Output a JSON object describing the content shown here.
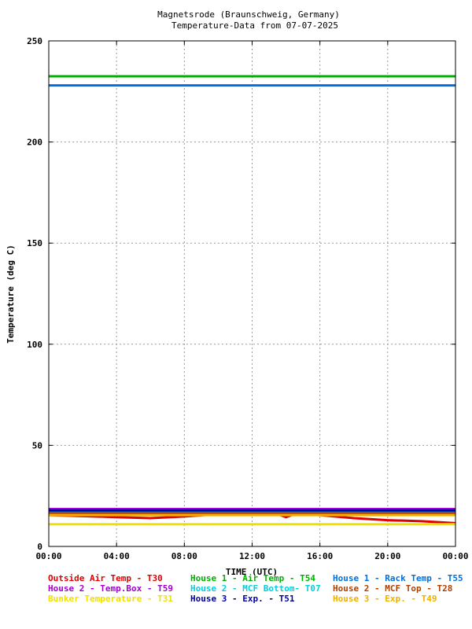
{
  "chart_data": {
    "type": "line",
    "title": "Magnetsrode (Braunschweig, Germany)",
    "subtitle": "Temperature-Data from 07-07-2025",
    "xlabel": "TIME (UTC)",
    "ylabel": "Temperature (deg C)",
    "xlim": [
      0,
      24
    ],
    "ylim": [
      0,
      250
    ],
    "x_ticks": [
      "00:00",
      "04:00",
      "08:00",
      "12:00",
      "16:00",
      "20:00",
      "00:00"
    ],
    "y_ticks": [
      0,
      50,
      100,
      150,
      200,
      250
    ],
    "grid": true,
    "legend_placement": "bottom",
    "series": [
      {
        "name": "Outside Air Temp",
        "code": "T30",
        "color": "#e00000",
        "x": [
          0,
          2,
          4,
          6,
          8,
          10,
          12,
          13.5,
          14,
          14.5,
          16,
          18,
          20,
          22,
          24
        ],
        "y": [
          15.5,
          15,
          14.5,
          14,
          14.8,
          16,
          16.5,
          16,
          14.5,
          16,
          15.5,
          14,
          13,
          12.5,
          11.5
        ]
      },
      {
        "name": "House 2 - Temp.Box",
        "code": "T59",
        "color": "#a000d0",
        "x": [
          0,
          24
        ],
        "y": [
          18.5,
          18.5
        ]
      },
      {
        "name": "Bunker Temperature",
        "code": "T31",
        "color": "#f0e000",
        "x": [
          0,
          24
        ],
        "y": [
          11,
          11
        ]
      },
      {
        "name": "House 1 - Air  Temp",
        "code": "T54",
        "color": "#00b000",
        "x": [
          0,
          24
        ],
        "y": [
          232.5,
          232.5
        ]
      },
      {
        "name": "House 2 - MCF Bottom",
        "code": "T07",
        "color": "#00d0e0",
        "x": [
          0,
          24
        ],
        "y": [
          17.5,
          17.5
        ]
      },
      {
        "name": "House 3 - Exp.",
        "code": "T51",
        "color": "#0000a0",
        "x": [
          0,
          24
        ],
        "y": [
          17.8,
          17.8
        ]
      },
      {
        "name": "House 1 - Rack Temp",
        "code": "T55",
        "color": "#0070e0",
        "x": [
          0,
          24
        ],
        "y": [
          228,
          228
        ]
      },
      {
        "name": "House 2 - MCF Top",
        "code": "T28",
        "color": "#b04000",
        "x": [
          0,
          24
        ],
        "y": [
          16.5,
          16.5
        ]
      },
      {
        "name": "House 3 - Exp.",
        "code": "T49",
        "color": "#f0b000",
        "x": [
          0,
          24
        ],
        "y": [
          15.5,
          15.5
        ]
      }
    ]
  }
}
